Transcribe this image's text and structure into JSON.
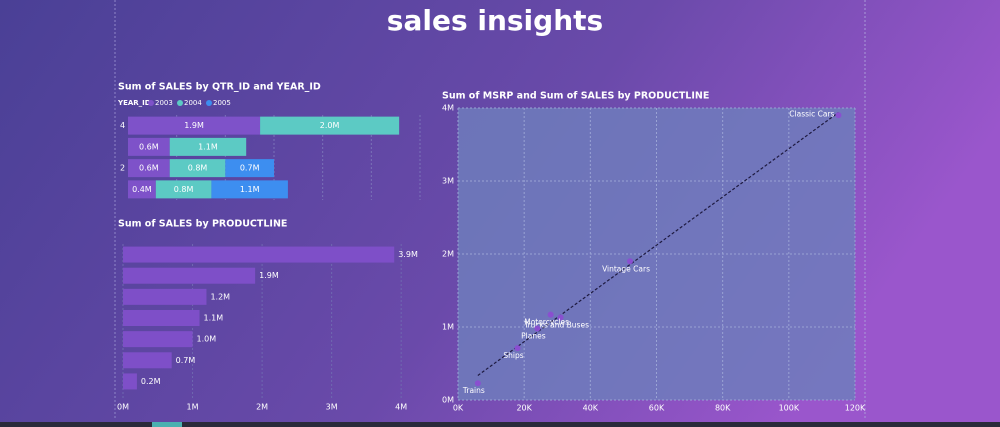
{
  "title": "sales insights",
  "chart_data": [
    {
      "type": "stacked-bar",
      "title": "Sum of SALES by QTR_ID and YEAR_ID",
      "legend_title": "YEAR_ID",
      "categories": [
        "4",
        null,
        "2",
        null
      ],
      "series": [
        {
          "name": "2003",
          "color": "#7e52c9",
          "values": [
            1900000,
            600000,
            600000,
            400000
          ],
          "value_labels": [
            "1.9M",
            "0.6M",
            "0.6M",
            "0.4M"
          ]
        },
        {
          "name": "2004",
          "color": "#5ccac4",
          "values": [
            2000000,
            1100000,
            800000,
            800000
          ],
          "value_labels": [
            "2.0M",
            "1.1M",
            "0.8M",
            "0.8M"
          ]
        },
        {
          "name": "2005",
          "color": "#3d8ef0",
          "values": [
            null,
            null,
            700000,
            1100000
          ],
          "value_labels": [
            null,
            null,
            "0.7M",
            "1.1M"
          ]
        }
      ],
      "xlim": [
        0,
        4200000
      ]
    },
    {
      "type": "bar",
      "title": "Sum of SALES by PRODUCTLINE",
      "categories": [
        null,
        null,
        null,
        null,
        null,
        null,
        null
      ],
      "values": [
        3900000,
        1900000,
        1200000,
        1100000,
        1000000,
        700000,
        200000
      ],
      "value_labels": [
        "3.9M",
        "1.9M",
        "1.2M",
        "1.1M",
        "1.0M",
        "0.7M",
        "0.2M"
      ],
      "color": "#7e4fc8",
      "xlim": [
        0,
        4400000
      ],
      "xticks": [
        {
          "value": 0,
          "label": "0M"
        },
        {
          "value": 1000000,
          "label": "1M"
        },
        {
          "value": 2000000,
          "label": "2M"
        },
        {
          "value": 3000000,
          "label": "3M"
        },
        {
          "value": 4000000,
          "label": "4M"
        }
      ]
    },
    {
      "type": "scatter",
      "title": "Sum of MSRP and Sum of SALES by PRODUCTLINE",
      "labels": [
        "Classic Cars",
        "Vintage Cars",
        "Trucks and Buses",
        "Motorcycles",
        "Planes",
        "Ships",
        "Trains"
      ],
      "x": [
        115000,
        52000,
        31000,
        28000,
        24000,
        18000,
        6000
      ],
      "values": [
        3900000,
        1900000,
        1130000,
        1170000,
        980000,
        710000,
        230000
      ],
      "color": "#8a4fd0",
      "trendline": true,
      "xlim": [
        0,
        120000
      ],
      "ylim": [
        0,
        4000000
      ],
      "xticks": [
        {
          "value": 0,
          "label": "0K"
        },
        {
          "value": 20000,
          "label": "20K"
        },
        {
          "value": 40000,
          "label": "40K"
        },
        {
          "value": 60000,
          "label": "60K"
        },
        {
          "value": 80000,
          "label": "80K"
        },
        {
          "value": 100000,
          "label": "100K"
        },
        {
          "value": 120000,
          "label": "120K"
        }
      ],
      "yticks": [
        {
          "value": 0,
          "label": "0M"
        },
        {
          "value": 1000000,
          "label": "1M"
        },
        {
          "value": 2000000,
          "label": "2M"
        },
        {
          "value": 3000000,
          "label": "3M"
        },
        {
          "value": 4000000,
          "label": "4M"
        }
      ]
    }
  ]
}
